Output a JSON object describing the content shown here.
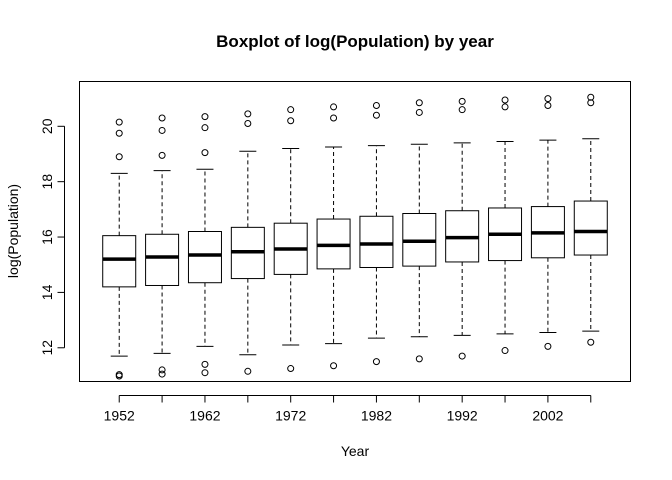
{
  "chart_data": {
    "type": "boxplot",
    "title": "Boxplot of log(Population) by year",
    "xlabel": "Year",
    "ylabel": "log(Population)",
    "ylim": [
      10.8,
      21.6
    ],
    "y_ticks": [
      12,
      14,
      16,
      18,
      20
    ],
    "x_tick_labels": [
      "1952",
      "1962",
      "1972",
      "1982",
      "1992",
      "2002"
    ],
    "x_tick_positions": [
      1,
      3,
      5,
      7,
      9,
      11
    ],
    "categories": [
      "1952",
      "1957",
      "1962",
      "1967",
      "1972",
      "1977",
      "1982",
      "1987",
      "1992",
      "1997",
      "2002",
      "2007"
    ],
    "series": [
      {
        "boxes": [
          {
            "year": "1952",
            "lower_whisker": 11.7,
            "q1": 14.2,
            "median": 15.2,
            "q3": 16.05,
            "upper_whisker": 18.3,
            "outliers": [
              10.98,
              11.03,
              18.9,
              19.75,
              20.15
            ]
          },
          {
            "year": "1957",
            "lower_whisker": 11.8,
            "q1": 14.25,
            "median": 15.28,
            "q3": 16.1,
            "upper_whisker": 18.4,
            "outliers": [
              11.05,
              11.2,
              18.95,
              19.85,
              20.3
            ]
          },
          {
            "year": "1962",
            "lower_whisker": 12.05,
            "q1": 14.35,
            "median": 15.35,
            "q3": 16.2,
            "upper_whisker": 18.45,
            "outliers": [
              11.1,
              11.4,
              19.05,
              19.95,
              20.35
            ]
          },
          {
            "year": "1967",
            "lower_whisker": 11.75,
            "q1": 14.5,
            "median": 15.47,
            "q3": 16.35,
            "upper_whisker": 19.1,
            "outliers": [
              11.15,
              20.1,
              20.45
            ]
          },
          {
            "year": "1972",
            "lower_whisker": 12.1,
            "q1": 14.65,
            "median": 15.57,
            "q3": 16.5,
            "upper_whisker": 19.2,
            "outliers": [
              11.25,
              20.2,
              20.6
            ]
          },
          {
            "year": "1977",
            "lower_whisker": 12.15,
            "q1": 14.85,
            "median": 15.7,
            "q3": 16.65,
            "upper_whisker": 19.25,
            "outliers": [
              11.35,
              20.3,
              20.7
            ]
          },
          {
            "year": "1982",
            "lower_whisker": 12.35,
            "q1": 14.9,
            "median": 15.75,
            "q3": 16.75,
            "upper_whisker": 19.3,
            "outliers": [
              11.5,
              20.4,
              20.75
            ]
          },
          {
            "year": "1987",
            "lower_whisker": 12.4,
            "q1": 14.95,
            "median": 15.85,
            "q3": 16.85,
            "upper_whisker": 19.35,
            "outliers": [
              11.6,
              20.5,
              20.85
            ]
          },
          {
            "year": "1992",
            "lower_whisker": 12.45,
            "q1": 15.1,
            "median": 15.98,
            "q3": 16.95,
            "upper_whisker": 19.4,
            "outliers": [
              11.7,
              20.6,
              20.9
            ]
          },
          {
            "year": "1997",
            "lower_whisker": 12.5,
            "q1": 15.15,
            "median": 16.1,
            "q3": 17.05,
            "upper_whisker": 19.45,
            "outliers": [
              11.9,
              20.7,
              20.95
            ]
          },
          {
            "year": "2002",
            "lower_whisker": 12.55,
            "q1": 15.25,
            "median": 16.15,
            "q3": 17.1,
            "upper_whisker": 19.5,
            "outliers": [
              12.05,
              20.75,
              21.0
            ]
          },
          {
            "year": "2007",
            "lower_whisker": 12.6,
            "q1": 15.35,
            "median": 16.2,
            "q3": 17.3,
            "upper_whisker": 19.55,
            "outliers": [
              12.2,
              20.85,
              21.05
            ]
          }
        ]
      }
    ],
    "grid": false,
    "legend": "none"
  }
}
